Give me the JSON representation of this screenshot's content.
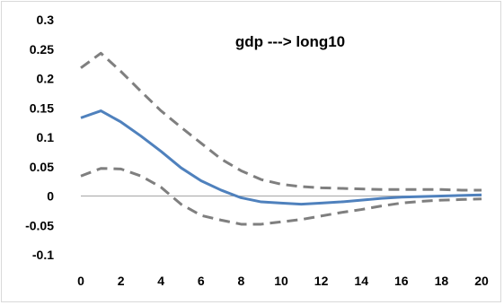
{
  "chart_data": {
    "type": "line",
    "title": "gdp ---> long10",
    "xlabel": "",
    "ylabel": "",
    "xlim": [
      0,
      20
    ],
    "ylim": [
      -0.1,
      0.3
    ],
    "x_ticks": [
      "0",
      "2",
      "4",
      "6",
      "8",
      "10",
      "12",
      "14",
      "16",
      "18",
      "20"
    ],
    "y_ticks": [
      "0.3",
      "0.25",
      "0.2",
      "0.15",
      "0.1",
      "0.05",
      "0",
      "-0.05",
      "-0.1"
    ],
    "y_tick_values": [
      0.3,
      0.25,
      0.2,
      0.15,
      0.1,
      0.05,
      0,
      -0.05,
      -0.1
    ],
    "x": [
      0,
      1,
      2,
      3,
      4,
      5,
      6,
      7,
      8,
      9,
      10,
      11,
      12,
      13,
      14,
      15,
      16,
      17,
      18,
      19,
      20
    ],
    "grid": false,
    "series": [
      {
        "style": "dashed",
        "color": "#7f7f7f",
        "values": [
          0.218,
          0.243,
          0.212,
          0.178,
          0.145,
          0.117,
          0.09,
          0.063,
          0.043,
          0.028,
          0.02,
          0.016,
          0.014,
          0.013,
          0.012,
          0.011,
          0.011,
          0.011,
          0.011,
          0.01,
          0.01
        ]
      },
      {
        "style": "solid",
        "color": "#4f81bd",
        "values": [
          0.133,
          0.145,
          0.126,
          0.102,
          0.076,
          0.048,
          0.026,
          0.01,
          -0.003,
          -0.01,
          -0.012,
          -0.014,
          -0.012,
          -0.01,
          -0.007,
          -0.004,
          -0.002,
          -0.001,
          0.0,
          0.001,
          0.002
        ]
      },
      {
        "style": "dashed",
        "color": "#7f7f7f",
        "values": [
          0.034,
          0.047,
          0.046,
          0.034,
          0.015,
          -0.014,
          -0.033,
          -0.041,
          -0.048,
          -0.048,
          -0.044,
          -0.04,
          -0.034,
          -0.028,
          -0.023,
          -0.017,
          -0.012,
          -0.009,
          -0.007,
          -0.006,
          -0.005
        ]
      }
    ],
    "zero_line_color": "#a6a6a6"
  }
}
